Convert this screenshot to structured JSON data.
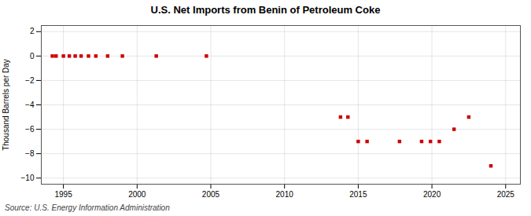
{
  "chart_data": {
    "type": "scatter",
    "title": "U.S. Net Imports from Benin of Petroleum Coke",
    "ylabel": "Thousand Barrels per Day",
    "source": "Source: U.S. Energy Information Administration",
    "x": [
      1994.25,
      1994.5,
      1995.0,
      1995.4,
      1995.8,
      1996.2,
      1996.7,
      1997.2,
      1998.0,
      1999.0,
      2001.3,
      2004.7,
      2013.8,
      2014.3,
      2015.0,
      2015.6,
      2017.8,
      2019.3,
      2019.9,
      2020.5,
      2021.5,
      2022.5,
      2024.0
    ],
    "values": [
      0,
      0,
      0,
      0,
      0,
      0,
      0,
      0,
      0,
      0,
      0,
      0,
      -5,
      -5,
      -7,
      -7,
      -7,
      -7,
      -7,
      -7,
      -6,
      -5,
      -9
    ],
    "color": "#cc0000",
    "marker": "square",
    "xlim": [
      1993.5,
      2026
    ],
    "xticks": [
      1995,
      2000,
      2005,
      2010,
      2015,
      2020,
      2025
    ],
    "ylim": [
      -10.5,
      2.5
    ],
    "yticks": [
      2,
      0,
      -2,
      -4,
      -6,
      -8,
      -10
    ],
    "grid": true
  }
}
